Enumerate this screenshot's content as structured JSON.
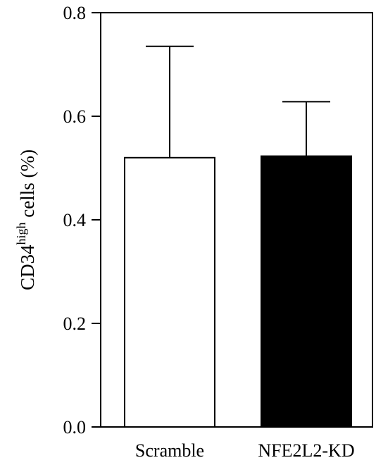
{
  "chart_data": {
    "type": "bar",
    "categories": [
      "Scramble",
      "NFE2L2-KD"
    ],
    "values": [
      0.52,
      0.523
    ],
    "errors": [
      0.215,
      0.105
    ],
    "bar_colors": [
      "#ffffff",
      "#000000"
    ],
    "ylabel": {
      "main": "CD34",
      "superscript": "high",
      "rest": " cells (%)"
    },
    "ylim": [
      0.0,
      0.8
    ],
    "yticks": [
      "0.0",
      "0.2",
      "0.4",
      "0.6",
      "0.8"
    ],
    "grid": false
  }
}
